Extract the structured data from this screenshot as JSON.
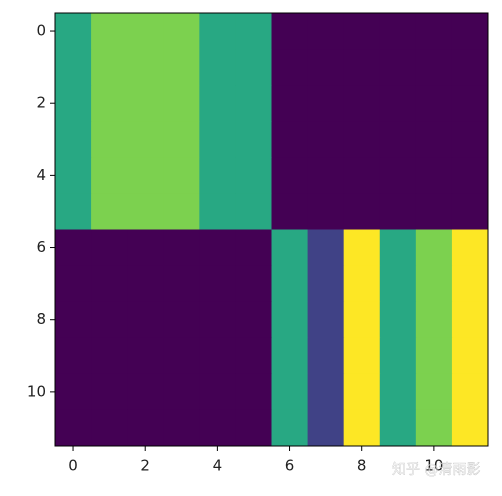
{
  "chart_data": {
    "type": "heatmap",
    "colormap": "viridis",
    "vmin": 0,
    "vmax": 5,
    "z": [
      [
        3,
        4,
        4,
        4,
        3,
        3,
        0,
        0,
        0,
        0,
        0,
        0
      ],
      [
        3,
        4,
        4,
        4,
        3,
        3,
        0,
        0,
        0,
        0,
        0,
        0
      ],
      [
        3,
        4,
        4,
        4,
        3,
        3,
        0,
        0,
        0,
        0,
        0,
        0
      ],
      [
        3,
        4,
        4,
        4,
        3,
        3,
        0,
        0,
        0,
        0,
        0,
        0
      ],
      [
        3,
        4,
        4,
        4,
        3,
        3,
        0,
        0,
        0,
        0,
        0,
        0
      ],
      [
        3,
        4,
        4,
        4,
        3,
        3,
        0,
        0,
        0,
        0,
        0,
        0
      ],
      [
        0,
        0,
        0,
        0,
        0,
        0,
        3,
        1,
        5,
        3,
        4,
        5
      ],
      [
        0,
        0,
        0,
        0,
        0,
        0,
        3,
        1,
        5,
        3,
        4,
        5
      ],
      [
        0,
        0,
        0,
        0,
        0,
        0,
        3,
        1,
        5,
        3,
        4,
        5
      ],
      [
        0,
        0,
        0,
        0,
        0,
        0,
        3,
        1,
        5,
        3,
        4,
        5
      ],
      [
        0,
        0,
        0,
        0,
        0,
        0,
        3,
        1,
        5,
        3,
        4,
        5
      ],
      [
        0,
        0,
        0,
        0,
        0,
        0,
        3,
        1,
        5,
        3,
        4,
        5
      ]
    ],
    "xlim": [
      -0.5,
      11.5
    ],
    "ylim": [
      11.5,
      -0.5
    ],
    "xticks": [
      0,
      2,
      4,
      6,
      8,
      10
    ],
    "yticks": [
      0,
      2,
      4,
      6,
      8,
      10
    ],
    "watermark": "知乎 @清雨影"
  }
}
